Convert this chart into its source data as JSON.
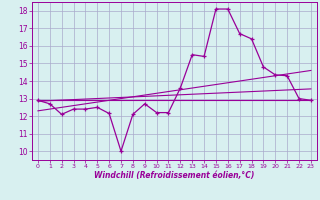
{
  "background_color": "#d8f0f0",
  "grid_color": "#aaaacc",
  "line_color": "#990099",
  "xlabel": "Windchill (Refroidissement éolien,°C)",
  "ylim": [
    9.5,
    18.5
  ],
  "xlim": [
    -0.5,
    23.5
  ],
  "yticks": [
    10,
    11,
    12,
    13,
    14,
    15,
    16,
    17,
    18
  ],
  "xticks": [
    0,
    1,
    2,
    3,
    4,
    5,
    6,
    7,
    8,
    9,
    10,
    11,
    12,
    13,
    14,
    15,
    16,
    17,
    18,
    19,
    20,
    21,
    22,
    23
  ],
  "main_line_x": [
    0,
    1,
    2,
    3,
    4,
    5,
    6,
    7,
    8,
    9,
    10,
    11,
    12,
    13,
    14,
    15,
    16,
    17,
    18,
    19,
    20,
    21,
    22,
    23
  ],
  "main_line_y": [
    12.9,
    12.7,
    12.1,
    12.4,
    12.4,
    12.5,
    12.15,
    10.0,
    12.1,
    12.7,
    12.2,
    12.2,
    13.6,
    15.5,
    15.4,
    18.1,
    18.1,
    16.7,
    16.4,
    14.8,
    14.35,
    14.3,
    13.0,
    12.9
  ],
  "trend1_x": [
    0,
    23
  ],
  "trend1_y": [
    12.9,
    12.9
  ],
  "trend2_x": [
    0,
    23
  ],
  "trend2_y": [
    12.85,
    13.55
  ],
  "trend3_x": [
    0,
    23
  ],
  "trend3_y": [
    12.3,
    14.6
  ]
}
